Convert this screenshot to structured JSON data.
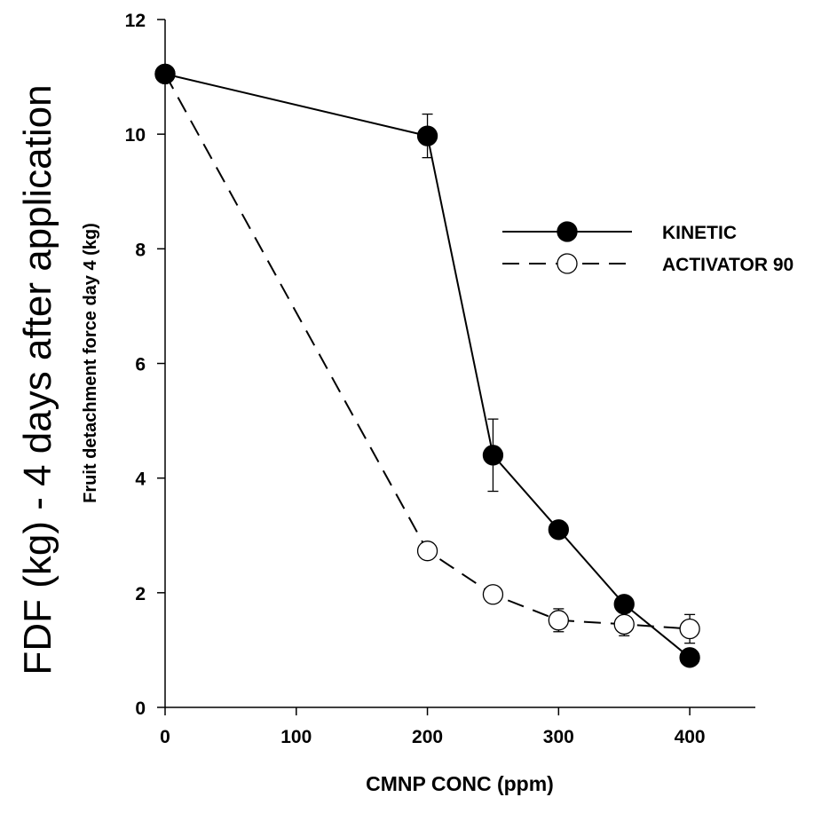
{
  "chart_data": {
    "type": "line",
    "outer_ylabel": "FDF (kg) - 4 days after application",
    "ylabel": "Fruit detachment force day 4 (kg)",
    "xlabel": "CMNP CONC (ppm)",
    "xlim": [
      0,
      450
    ],
    "ylim": [
      0,
      12
    ],
    "xticks": [
      0,
      100,
      200,
      300,
      400
    ],
    "yticks": [
      0,
      2,
      4,
      6,
      8,
      10,
      12
    ],
    "xtick_labels": [
      "0",
      "100",
      "200",
      "300",
      "400"
    ],
    "ytick_labels": [
      "0",
      "2",
      "4",
      "6",
      "8",
      "10",
      "12"
    ],
    "grid": false,
    "legend_position": "upper-right",
    "series": [
      {
        "name": "KINETIC",
        "line_style": "solid",
        "marker": "filled-circle",
        "color": "#000000",
        "x": [
          0,
          200,
          250,
          300,
          350,
          400
        ],
        "y": [
          11.05,
          9.97,
          4.4,
          3.1,
          1.8,
          0.87
        ],
        "err": [
          0,
          0.38,
          0.63,
          0,
          0,
          0.14
        ]
      },
      {
        "name": "ACTIVATOR 90",
        "line_style": "dashed",
        "marker": "open-circle",
        "color": "#000000",
        "x": [
          0,
          200,
          250,
          300,
          350,
          400
        ],
        "y": [
          11.05,
          2.73,
          1.97,
          1.52,
          1.45,
          1.37
        ],
        "err": [
          0,
          0,
          0,
          0.2,
          0.2,
          0.25
        ]
      }
    ]
  }
}
